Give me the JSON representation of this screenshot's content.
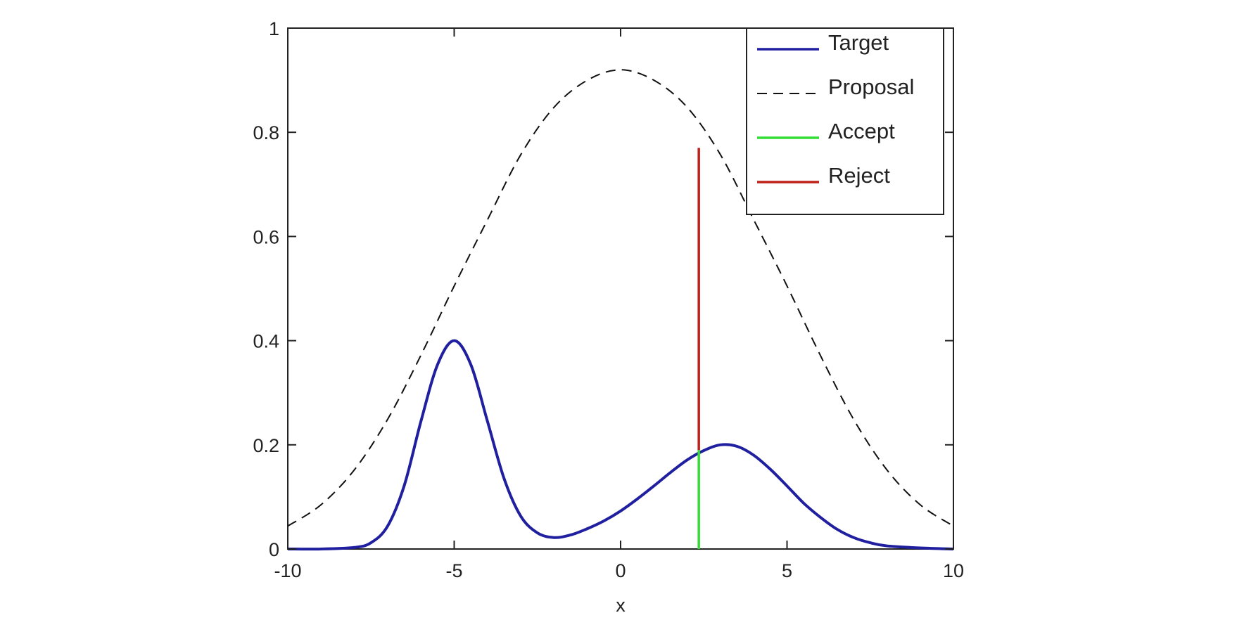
{
  "chart_data": {
    "type": "line",
    "title": "",
    "xlabel": "x",
    "ylabel": "",
    "xlim": [
      -10,
      10
    ],
    "ylim": [
      0,
      1
    ],
    "x_ticks": [
      -10,
      -5,
      0,
      5,
      10
    ],
    "x_tick_labels": [
      "-10",
      "-5",
      "0",
      "5",
      "10"
    ],
    "y_ticks": [
      0,
      0.2,
      0.4,
      0.6,
      0.8,
      1
    ],
    "y_tick_labels": [
      "0",
      "0.2",
      "0.4",
      "0.6",
      "0.8",
      "1"
    ],
    "grid": false,
    "legend_position": "top-right",
    "series": [
      {
        "name": "Target",
        "style": "solid",
        "color": "#1f1fa0",
        "x": [
          -10,
          -9,
          -8,
          -7.5,
          -7,
          -6.5,
          -6,
          -5.5,
          -5,
          -4.5,
          -4,
          -3.5,
          -3,
          -2.5,
          -2,
          -1.5,
          -1,
          -0.5,
          0,
          0.5,
          1,
          1.5,
          2,
          2.5,
          3,
          3.5,
          4,
          4.5,
          5,
          5.5,
          6,
          6.5,
          7,
          7.5,
          8,
          9,
          10
        ],
        "y": [
          0,
          0,
          0.003,
          0.012,
          0.044,
          0.122,
          0.245,
          0.354,
          0.4,
          0.354,
          0.245,
          0.135,
          0.063,
          0.031,
          0.022,
          0.027,
          0.039,
          0.054,
          0.073,
          0.096,
          0.121,
          0.147,
          0.171,
          0.189,
          0.2,
          0.197,
          0.18,
          0.153,
          0.121,
          0.088,
          0.061,
          0.038,
          0.022,
          0.012,
          0.006,
          0.002,
          0
        ]
      },
      {
        "name": "Proposal",
        "style": "dashed",
        "color": "#111111",
        "x": [
          -10,
          -9,
          -8,
          -7,
          -6,
          -5,
          -4,
          -3,
          -2,
          -1,
          0,
          1,
          2,
          3,
          4,
          5,
          6,
          7,
          8,
          9,
          10
        ],
        "y": [
          0.044,
          0.085,
          0.152,
          0.249,
          0.372,
          0.505,
          0.632,
          0.757,
          0.848,
          0.9,
          0.92,
          0.9,
          0.848,
          0.757,
          0.632,
          0.505,
          0.372,
          0.249,
          0.152,
          0.085,
          0.044
        ]
      },
      {
        "name": "Accept",
        "style": "solid",
        "color": "#33dd33",
        "x": [
          2.35,
          2.35
        ],
        "y": [
          0,
          0.19
        ]
      },
      {
        "name": "Reject",
        "style": "solid",
        "color": "#c0201a",
        "x": [
          2.35,
          2.35
        ],
        "y": [
          0.19,
          0.77
        ]
      }
    ]
  }
}
